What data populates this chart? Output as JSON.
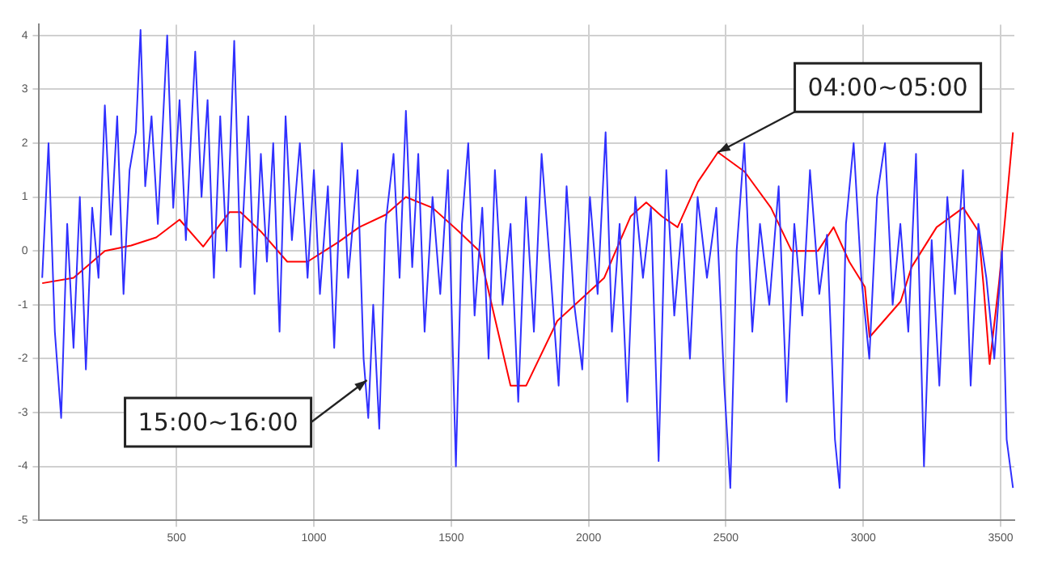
{
  "chart_data": {
    "type": "line",
    "x": [
      11,
      34,
      57,
      80,
      102,
      125,
      148,
      170,
      193,
      216,
      239,
      261,
      284,
      307,
      329,
      352,
      369,
      386,
      409,
      432,
      466,
      488,
      511,
      534,
      568,
      591,
      613,
      636,
      659,
      682,
      710,
      733,
      761,
      784,
      807,
      829,
      852,
      875,
      897,
      920,
      949,
      977,
      1000,
      1022,
      1051,
      1074,
      1102,
      1125,
      1159,
      1181,
      1198,
      1216,
      1238,
      1261,
      1290,
      1312,
      1335,
      1358,
      1380,
      1403,
      1432,
      1460,
      1488,
      1517,
      1539,
      1562,
      1585,
      1613,
      1636,
      1659,
      1687,
      1716,
      1744,
      1772,
      1801,
      1829,
      1863,
      1891,
      1920,
      1948,
      1977,
      2005,
      2033,
      2062,
      2085,
      2113,
      2141,
      2170,
      2198,
      2227,
      2255,
      2283,
      2312,
      2340,
      2369,
      2397,
      2431,
      2465,
      2494,
      2516,
      2539,
      2567,
      2596,
      2624,
      2658,
      2692,
      2721,
      2749,
      2778,
      2806,
      2840,
      2868,
      2897,
      2914,
      2937,
      2965,
      2993,
      3022,
      3050,
      3079,
      3107,
      3135,
      3164,
      3192,
      3221,
      3249,
      3277,
      3306,
      3334,
      3363,
      3391,
      3419,
      3448,
      3477,
      3505,
      3522,
      3545
    ],
    "series": [
      {
        "color": "#3030ff",
        "values": [
          -0.5,
          2.0,
          -1.5,
          -3.1,
          0.5,
          -1.8,
          1.0,
          -2.2,
          0.8,
          -0.5,
          2.7,
          0.3,
          2.5,
          -0.8,
          1.5,
          2.2,
          4.1,
          1.2,
          2.5,
          0.5,
          4.0,
          0.8,
          2.8,
          0.2,
          3.7,
          1.0,
          2.8,
          -0.5,
          2.5,
          0.0,
          3.9,
          -0.3,
          2.5,
          -0.8,
          1.8,
          -0.2,
          2.0,
          -1.5,
          2.5,
          0.2,
          2.0,
          -0.5,
          1.5,
          -0.8,
          1.2,
          -1.8,
          2.0,
          -0.5,
          1.5,
          -2.0,
          -3.1,
          -1.0,
          -3.3,
          0.5,
          1.8,
          -0.5,
          2.6,
          -0.3,
          1.8,
          -1.5,
          1.0,
          -0.8,
          1.5,
          -4.0,
          0.5,
          2.0,
          -1.2,
          0.8,
          -2.0,
          1.5,
          -1.0,
          0.5,
          -2.8,
          1.0,
          -1.5,
          1.8,
          -0.5,
          -2.5,
          1.2,
          -1.0,
          -2.2,
          1.0,
          -0.8,
          2.2,
          -1.5,
          0.5,
          -2.8,
          1.0,
          -0.5,
          0.8,
          -3.9,
          1.5,
          -1.2,
          0.5,
          -2.0,
          1.0,
          -0.5,
          0.8,
          -2.5,
          -4.4,
          0.0,
          2.0,
          -1.5,
          0.5,
          -1.0,
          1.2,
          -2.8,
          0.5,
          -1.2,
          1.5,
          -0.8,
          0.3,
          -3.5,
          -4.4,
          0.5,
          2.0,
          -0.5,
          -2.0,
          1.0,
          2.0,
          -1.0,
          0.5,
          -1.5,
          1.8,
          -4.0,
          0.2,
          -2.5,
          1.0,
          -0.8,
          1.5,
          -2.5,
          0.5,
          -0.5,
          -2.0,
          0.0,
          -3.5,
          -4.4
        ]
      },
      {
        "color": "#ff0000",
        "x": [
          11,
          125,
          239,
          335,
          426,
          511,
          597,
          693,
          733,
          807,
          903,
          977,
          1091,
          1165,
          1261,
          1335,
          1432,
          1528,
          1602,
          1716,
          1773,
          1886,
          2057,
          2153,
          2210,
          2267,
          2324,
          2398,
          2471,
          2568,
          2664,
          2739,
          2835,
          2892,
          2949,
          3006,
          3023,
          3136,
          3176,
          3267,
          3364,
          3420,
          3437,
          3460,
          3494,
          3517,
          3545
        ],
        "values": [
          -0.6,
          -0.5,
          0,
          0.1,
          0.25,
          0.58,
          0.08,
          0.72,
          0.72,
          0.36,
          -0.2,
          -0.2,
          0.17,
          0.44,
          0.67,
          1.0,
          0.8,
          0.36,
          0,
          -2.5,
          -2.5,
          -1.3,
          -0.5,
          0.64,
          0.9,
          0.64,
          0.44,
          1.28,
          1.83,
          1.47,
          0.8,
          0,
          0,
          0.44,
          -0.2,
          -0.67,
          -1.6,
          -0.94,
          -0.3,
          0.44,
          0.8,
          0.36,
          -0.6,
          -2.1,
          -0.6,
          0.64,
          2.2
        ]
      }
    ],
    "xlim": [
      0,
      3550
    ],
    "xticks": [
      500,
      1000,
      1500,
      2000,
      2500,
      3000,
      3500
    ],
    "ylim": [
      -5,
      4.2
    ],
    "yticks": [
      -5,
      -4,
      -3,
      -2,
      -1,
      0,
      1,
      2,
      3,
      4
    ],
    "grid": true,
    "legend": false,
    "marker": "none",
    "line_style": "solid",
    "annotations": [
      {
        "text": "04:00~05:00",
        "x": 2471,
        "y": 1.83
      },
      {
        "text": "15:00~16:00",
        "x": 1193,
        "y": -2.4
      }
    ]
  }
}
